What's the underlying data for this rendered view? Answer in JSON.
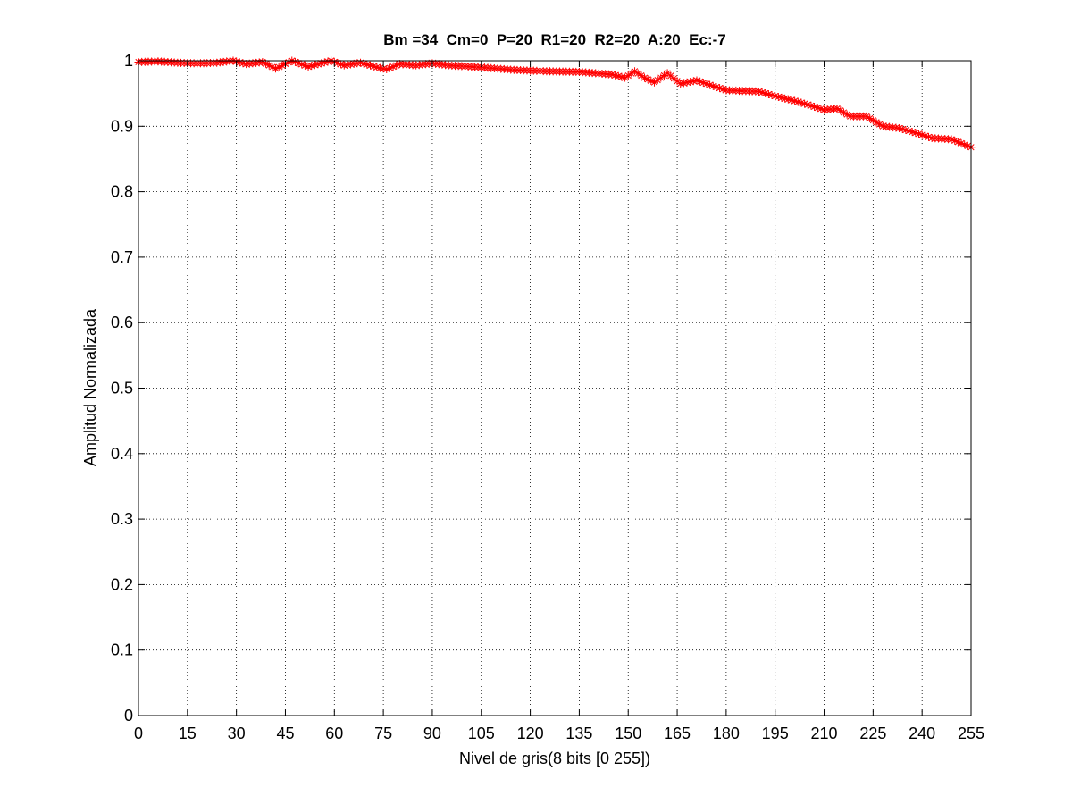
{
  "chart_data": {
    "type": "line",
    "title": "Bm =34  Cm=0  P=20  R1=20  R2=20  A:20  Ec:-7",
    "xlabel": "Nivel de gris(8 bits [0 255])",
    "ylabel": "Amplitud Normalizada",
    "xlim": [
      0,
      255
    ],
    "ylim": [
      0,
      1
    ],
    "xticks": [
      0,
      15,
      30,
      45,
      60,
      75,
      90,
      105,
      120,
      135,
      150,
      165,
      180,
      195,
      210,
      225,
      240,
      255
    ],
    "yticks": [
      0,
      0.1,
      0.2,
      0.3,
      0.4,
      0.5,
      0.6,
      0.7,
      0.8,
      0.9,
      1
    ],
    "ytick_labels": [
      "0",
      "0.1",
      "0.2",
      "0.3",
      "0.4",
      "0.5",
      "0.6",
      "0.7",
      "0.8",
      "0.9",
      "1"
    ],
    "grid": true,
    "line_color": "#ff0000",
    "marker": "asterisk",
    "x_step": 1,
    "keypoints": [
      [
        0,
        0.998
      ],
      [
        6,
        0.999
      ],
      [
        12,
        0.997
      ],
      [
        18,
        0.996
      ],
      [
        24,
        0.997
      ],
      [
        29,
        1.0
      ],
      [
        33,
        0.995
      ],
      [
        38,
        0.998
      ],
      [
        42,
        0.988
      ],
      [
        47,
        1.0
      ],
      [
        52,
        0.991
      ],
      [
        59,
        1.0
      ],
      [
        63,
        0.993
      ],
      [
        68,
        0.997
      ],
      [
        73,
        0.99
      ],
      [
        76,
        0.987
      ],
      [
        80,
        0.995
      ],
      [
        85,
        0.993
      ],
      [
        90,
        0.996
      ],
      [
        95,
        0.993
      ],
      [
        105,
        0.99
      ],
      [
        115,
        0.986
      ],
      [
        125,
        0.984
      ],
      [
        135,
        0.983
      ],
      [
        145,
        0.979
      ],
      [
        149,
        0.974
      ],
      [
        152,
        0.984
      ],
      [
        155,
        0.974
      ],
      [
        158,
        0.967
      ],
      [
        162,
        0.981
      ],
      [
        166,
        0.965
      ],
      [
        171,
        0.97
      ],
      [
        175,
        0.963
      ],
      [
        180,
        0.955
      ],
      [
        190,
        0.953
      ],
      [
        195,
        0.946
      ],
      [
        200,
        0.94
      ],
      [
        205,
        0.933
      ],
      [
        210,
        0.925
      ],
      [
        214,
        0.927
      ],
      [
        218,
        0.915
      ],
      [
        223,
        0.915
      ],
      [
        228,
        0.9
      ],
      [
        233,
        0.897
      ],
      [
        238,
        0.89
      ],
      [
        243,
        0.882
      ],
      [
        249,
        0.88
      ],
      [
        255,
        0.868
      ]
    ]
  }
}
